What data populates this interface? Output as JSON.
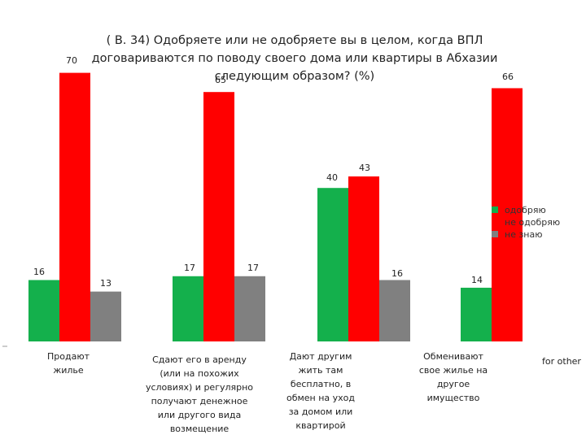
{
  "chart_data": {
    "type": "bar",
    "title": "( В. 34)  Одобряете или не одобряете вы в целом, когда ВПЛ договариваются по поводу своего дома или квартиры в Абхазии следующим образом? (%)",
    "title_lines": [
      "( В. 34)  Одобряете или не одобряете вы в целом, когда ВПЛ",
      "договариваются по поводу своего дома или квартиры в Абхазии",
      "следующим образом? (%)"
    ],
    "categories": [
      "Продают жилье",
      "Сдают его в аренду (или на похожих условиях) и регулярно получают денежное или другого вида возмещение",
      "Дают другим жить там бесплатно, в обмен на уход за домом или квартирой",
      "Обменивают свое жилье на другое имущество",
      "for other"
    ],
    "category_lines": [
      [
        "Продают",
        "жилье"
      ],
      [
        "Сдают его в аренду",
        "(или на похожих",
        "условиях) и регулярно",
        "получают денежное",
        "или другого вида",
        "возмещение"
      ],
      [
        "Дают другим",
        "жить там",
        "бесплатно, в",
        "обмен на уход",
        "за домом или",
        "квартирой"
      ],
      [
        "Обменивают",
        "свое жилье на",
        "другое",
        "имущество"
      ],
      [
        "for other"
      ]
    ],
    "series": [
      {
        "name": "одобряю",
        "color": "#14b04c",
        "values": [
          16,
          17,
          40,
          14,
          null
        ]
      },
      {
        "name": "не одобряю",
        "color": "#ff0000",
        "values": [
          70,
          65,
          43,
          66,
          null
        ]
      },
      {
        "name": "не знаю",
        "color": "#808080",
        "values": [
          13,
          17,
          16,
          null,
          null
        ]
      }
    ],
    "value_labels": [
      [
        "16",
        "17",
        "40",
        "14",
        ""
      ],
      [
        "70",
        "65",
        "43",
        "66",
        ""
      ],
      [
        "13",
        "17",
        "16",
        "",
        ""
      ]
    ],
    "ylim": [
      0,
      100
    ],
    "legend": "right",
    "grid": false
  }
}
